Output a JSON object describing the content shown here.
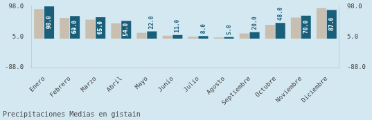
{
  "chart_data": {
    "type": "bar",
    "title": "Precipitaciones Medias en gistain",
    "categories": [
      "Enero",
      "Febrero",
      "Marzo",
      "Abril",
      "Mayo",
      "Junio",
      "Julio",
      "Agosto",
      "Septiembre",
      "Octubre",
      "Noviembre",
      "Diciembre"
    ],
    "series": [
      {
        "color": "#c8bfb0",
        "values": [
          90,
          63,
          58,
          47,
          18,
          9,
          6,
          4,
          16,
          42,
          64,
          93
        ]
      },
      {
        "color": "#1a5f7a",
        "values": [
          98,
          69,
          65,
          54,
          22,
          11,
          8,
          5,
          20,
          48,
          70,
          87
        ],
        "data_labels": true,
        "value_labels": [
          "98.0",
          "69.0",
          "65.0",
          "54.0",
          "22.0",
          "11.0",
          "8.0",
          "5.0",
          "20.0",
          "48.0",
          "70.0",
          "87.0"
        ]
      }
    ],
    "ylim": [
      -88,
      100
    ],
    "yticks": [
      {
        "value": -88,
        "label": "-88.0"
      },
      {
        "value": 5,
        "label": "5.0"
      },
      {
        "value": 98,
        "label": "98.0"
      }
    ],
    "y2lim": [
      -88,
      100
    ],
    "y2ticks": [
      {
        "value": -88,
        "label": "-88.0"
      },
      {
        "value": 5,
        "label": "5.0"
      },
      {
        "value": 98,
        "label": "98.0"
      }
    ],
    "grid": false
  }
}
